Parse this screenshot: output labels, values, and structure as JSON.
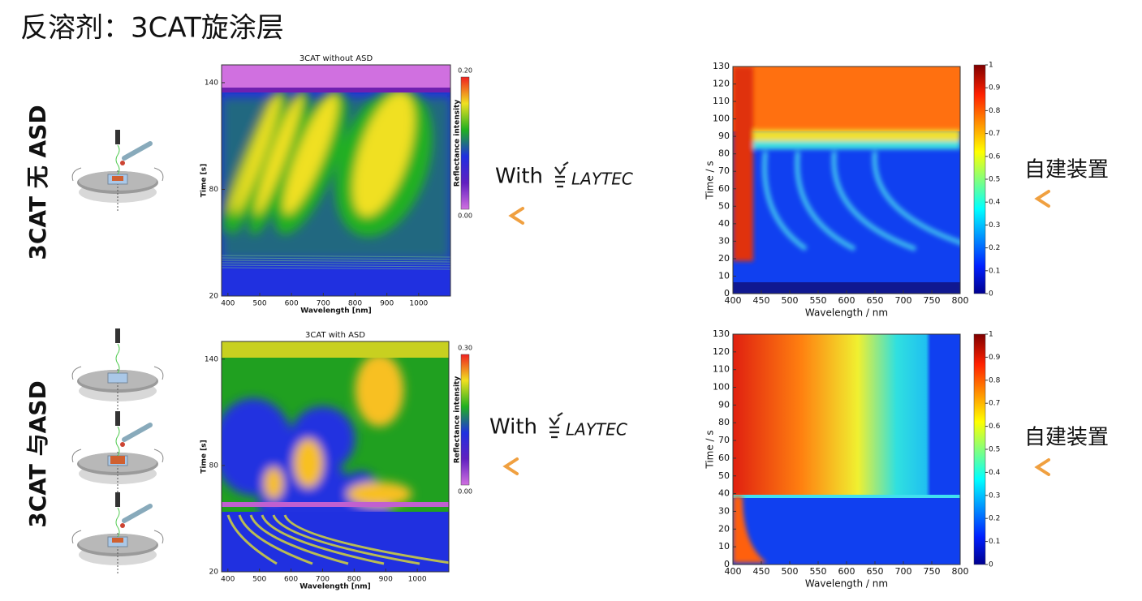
{
  "title": "反溶剂：3CAT旋涂层",
  "row_labels": [
    "3CAT 无 ASD",
    "3CAT 与ASD"
  ],
  "annotations": {
    "with": "With",
    "logo": "LAYTEC",
    "self_built": "自建装置"
  },
  "chart_data": [
    {
      "type": "heatmap",
      "title": "3CAT without ASD",
      "xlabel": "Wavelength [nm]",
      "ylabel": "Time [s]",
      "xlim": [
        380,
        1100
      ],
      "ylim": [
        20,
        150
      ],
      "xticks": [
        400,
        500,
        600,
        700,
        800,
        900,
        1000
      ],
      "yticks": [
        20,
        80,
        140
      ],
      "clabel": "Reflectance intensity",
      "clim": [
        0,
        0.2
      ],
      "cticks": [
        {
          "value": 0,
          "label": "0.00"
        },
        {
          "value": 0.2,
          "label": "0.20"
        }
      ]
    },
    {
      "type": "heatmap",
      "title": "3CAT with ASD",
      "xlabel": "Wavelength [nm]",
      "ylabel": "Time [s]",
      "xlim": [
        380,
        1100
      ],
      "ylim": [
        20,
        150
      ],
      "xticks": [
        400,
        500,
        600,
        700,
        800,
        900,
        1000
      ],
      "yticks": [
        20,
        80,
        140
      ],
      "clabel": "Reflectance intensity",
      "clim": [
        0,
        0.3
      ],
      "cticks": [
        {
          "value": 0,
          "label": "0.00"
        },
        {
          "value": 0.3,
          "label": "0.30"
        }
      ]
    },
    {
      "type": "heatmap",
      "xlabel": "Wavelength / nm",
      "ylabel": "Time / s",
      "xlim": [
        400,
        800
      ],
      "ylim": [
        0,
        130
      ],
      "xticks": [
        400,
        450,
        500,
        550,
        600,
        650,
        700,
        750,
        800
      ],
      "yticks": [
        0,
        10,
        20,
        30,
        40,
        50,
        60,
        70,
        80,
        90,
        100,
        110,
        120,
        130
      ],
      "clim": [
        0,
        1
      ],
      "cticks": [
        0,
        0.1,
        0.2,
        0.3,
        0.4,
        0.5,
        0.6,
        0.7,
        0.8,
        0.9,
        1
      ]
    },
    {
      "type": "heatmap",
      "xlabel": "Wavelength / nm",
      "ylabel": "Time / s",
      "xlim": [
        400,
        800
      ],
      "ylim": [
        0,
        130
      ],
      "xticks": [
        400,
        450,
        500,
        550,
        600,
        650,
        700,
        750,
        800
      ],
      "yticks": [
        0,
        10,
        20,
        30,
        40,
        50,
        60,
        70,
        80,
        90,
        100,
        110,
        120,
        130
      ],
      "clim": [
        0,
        1
      ],
      "cticks": [
        0,
        0.1,
        0.2,
        0.3,
        0.4,
        0.5,
        0.6,
        0.7,
        0.8,
        0.9,
        1
      ]
    }
  ]
}
